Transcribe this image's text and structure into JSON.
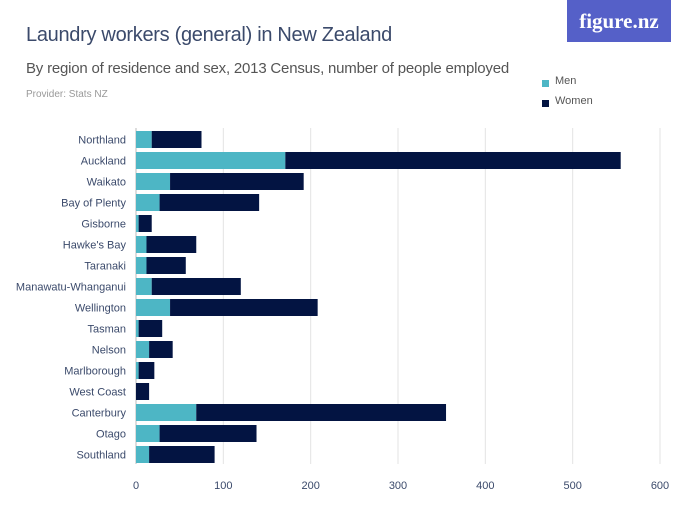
{
  "header": {
    "title": "Laundry workers (general) in New Zealand",
    "subtitle": "By region of residence and sex, 2013 Census, number of people employed",
    "provider": "Provider: Stats NZ",
    "logo": "figure.nz"
  },
  "chart_data": {
    "type": "bar",
    "orientation": "horizontal",
    "stacked": true,
    "title": "Laundry workers (general) in New Zealand",
    "categories": [
      "Northland",
      "Auckland",
      "Waikato",
      "Bay of Plenty",
      "Gisborne",
      "Hawke's Bay",
      "Taranaki",
      "Manawatu-Whanganui",
      "Wellington",
      "Tasman",
      "Nelson",
      "Marlborough",
      "West Coast",
      "Canterbury",
      "Otago",
      "Southland"
    ],
    "series": [
      {
        "name": "Men",
        "color": "#4db6c5",
        "values": [
          18,
          171,
          39,
          27,
          3,
          12,
          12,
          18,
          39,
          3,
          15,
          3,
          0,
          69,
          27,
          15
        ]
      },
      {
        "name": "Women",
        "color": "#031442",
        "values": [
          57,
          384,
          153,
          114,
          15,
          57,
          45,
          102,
          169,
          27,
          27,
          18,
          15,
          286,
          111,
          75
        ]
      }
    ],
    "xlim": [
      0,
      600
    ],
    "xticks": [
      "0",
      "100",
      "200",
      "300",
      "400",
      "500",
      "600"
    ],
    "grid": true,
    "legend": "top-right",
    "xlabel": "",
    "ylabel": ""
  }
}
